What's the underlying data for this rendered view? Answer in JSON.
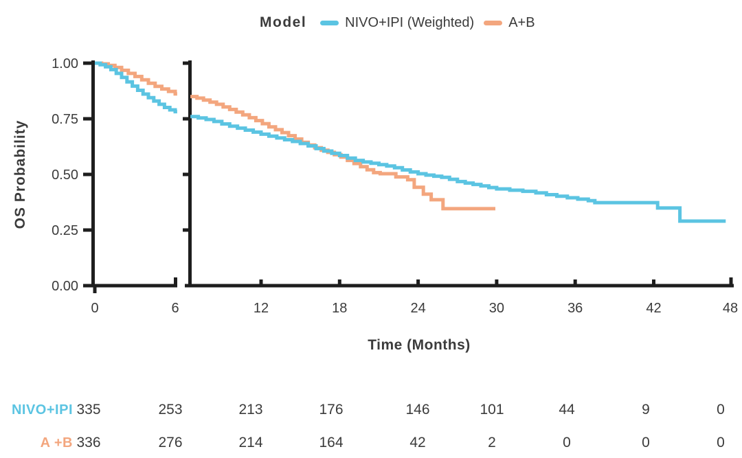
{
  "chart_data": {
    "type": "line",
    "subtype": "kaplan-meier-step-curves",
    "title": "",
    "legend": {
      "title": "Model",
      "entries": [
        {
          "label": "NIVO+IPI (Weighted)",
          "color": "#5BC4E2"
        },
        {
          "label": "A+B",
          "color": "#F3A67E"
        }
      ],
      "position": "top-center"
    },
    "xlabel": "Time (Months)",
    "ylabel": "OS Probability",
    "ylim": [
      0.0,
      1.0
    ],
    "grid": "off",
    "axis_break": {
      "between_months": [
        6,
        7
      ],
      "panel1_range": [
        0,
        6
      ],
      "panel2_range": [
        6.6,
        48
      ]
    },
    "yticks": [
      {
        "v": 1.0,
        "label": "1.00"
      },
      {
        "v": 0.75,
        "label": "0.75"
      },
      {
        "v": 0.5,
        "label": "0.50"
      },
      {
        "v": 0.25,
        "label": "0.25"
      },
      {
        "v": 0.0,
        "label": "0.00"
      }
    ],
    "xticks_panel1": [
      {
        "m": 0,
        "label": "0"
      },
      {
        "m": 6,
        "label": "6"
      }
    ],
    "xticks_panel2": [
      {
        "m": 12,
        "label": "12"
      },
      {
        "m": 18,
        "label": "18"
      },
      {
        "m": 24,
        "label": "24"
      },
      {
        "m": 30,
        "label": "30"
      },
      {
        "m": 36,
        "label": "36"
      },
      {
        "m": 42,
        "label": "42"
      },
      {
        "m": 48,
        "label": "48"
      }
    ],
    "series": [
      {
        "name": "NIVO+IPI (Weighted)",
        "color": "#5BC4E2",
        "panel1_points": [
          [
            0,
            1.0
          ],
          [
            0.4,
            0.993
          ],
          [
            0.8,
            0.984
          ],
          [
            1.2,
            0.971
          ],
          [
            1.6,
            0.954
          ],
          [
            2.0,
            0.936
          ],
          [
            2.4,
            0.916
          ],
          [
            2.8,
            0.897
          ],
          [
            3.2,
            0.878
          ],
          [
            3.6,
            0.861
          ],
          [
            4.0,
            0.845
          ],
          [
            4.4,
            0.83
          ],
          [
            4.8,
            0.815
          ],
          [
            5.2,
            0.801
          ],
          [
            5.6,
            0.79
          ],
          [
            6.0,
            0.782
          ],
          [
            6.15,
            0.782
          ]
        ],
        "panel2_points": [
          [
            6.6,
            0.76
          ],
          [
            7.2,
            0.754
          ],
          [
            7.8,
            0.747
          ],
          [
            8.4,
            0.738
          ],
          [
            9.0,
            0.727
          ],
          [
            9.6,
            0.717
          ],
          [
            10.2,
            0.708
          ],
          [
            10.8,
            0.699
          ],
          [
            11.4,
            0.69
          ],
          [
            12.0,
            0.681
          ],
          [
            12.6,
            0.672
          ],
          [
            13.2,
            0.664
          ],
          [
            13.8,
            0.656
          ],
          [
            14.4,
            0.648
          ],
          [
            15.0,
            0.639
          ],
          [
            15.6,
            0.628
          ],
          [
            16.2,
            0.616
          ],
          [
            16.8,
            0.605
          ],
          [
            17.4,
            0.595
          ],
          [
            18.0,
            0.585
          ],
          [
            18.6,
            0.573
          ],
          [
            19.2,
            0.563
          ],
          [
            19.8,
            0.556
          ],
          [
            20.4,
            0.55
          ],
          [
            21.0,
            0.544
          ],
          [
            21.6,
            0.538
          ],
          [
            22.2,
            0.53
          ],
          [
            22.8,
            0.52
          ],
          [
            23.4,
            0.511
          ],
          [
            24.0,
            0.503
          ],
          [
            24.6,
            0.497
          ],
          [
            25.2,
            0.492
          ],
          [
            25.8,
            0.487
          ],
          [
            26.4,
            0.478
          ],
          [
            27.0,
            0.468
          ],
          [
            27.6,
            0.461
          ],
          [
            28.2,
            0.455
          ],
          [
            28.8,
            0.448
          ],
          [
            29.4,
            0.441
          ],
          [
            30.0,
            0.435
          ],
          [
            31.0,
            0.429
          ],
          [
            32.0,
            0.424
          ],
          [
            33.0,
            0.417
          ],
          [
            33.8,
            0.409
          ],
          [
            34.6,
            0.402
          ],
          [
            35.4,
            0.395
          ],
          [
            36.2,
            0.389
          ],
          [
            37.0,
            0.382
          ],
          [
            37.5,
            0.373
          ],
          [
            42.3,
            0.349
          ],
          [
            44.0,
            0.29
          ],
          [
            47.5,
            0.29
          ]
        ]
      },
      {
        "name": "A+B",
        "color": "#F3A67E",
        "panel1_points": [
          [
            0,
            1.0
          ],
          [
            0.5,
            0.997
          ],
          [
            1.0,
            0.99
          ],
          [
            1.5,
            0.981
          ],
          [
            2.0,
            0.968
          ],
          [
            2.5,
            0.954
          ],
          [
            3.0,
            0.94
          ],
          [
            3.5,
            0.925
          ],
          [
            4.0,
            0.91
          ],
          [
            4.5,
            0.896
          ],
          [
            5.0,
            0.884
          ],
          [
            5.5,
            0.873
          ],
          [
            6.0,
            0.862
          ],
          [
            6.15,
            0.862
          ]
        ],
        "panel2_points": [
          [
            6.6,
            0.85
          ],
          [
            7.1,
            0.843
          ],
          [
            7.6,
            0.834
          ],
          [
            8.1,
            0.825
          ],
          [
            8.6,
            0.815
          ],
          [
            9.1,
            0.803
          ],
          [
            9.6,
            0.792
          ],
          [
            10.1,
            0.78
          ],
          [
            10.6,
            0.768
          ],
          [
            11.1,
            0.755
          ],
          [
            11.6,
            0.742
          ],
          [
            12.1,
            0.728
          ],
          [
            12.6,
            0.714
          ],
          [
            13.1,
            0.701
          ],
          [
            13.6,
            0.688
          ],
          [
            14.1,
            0.674
          ],
          [
            14.6,
            0.659
          ],
          [
            15.1,
            0.644
          ],
          [
            15.6,
            0.632
          ],
          [
            16.1,
            0.62
          ],
          [
            16.6,
            0.609
          ],
          [
            17.1,
            0.599
          ],
          [
            17.6,
            0.589
          ],
          [
            18.1,
            0.578
          ],
          [
            18.6,
            0.563
          ],
          [
            19.1,
            0.549
          ],
          [
            19.6,
            0.535
          ],
          [
            20.1,
            0.521
          ],
          [
            20.6,
            0.508
          ],
          [
            21.1,
            0.503
          ],
          [
            22.3,
            0.489
          ],
          [
            23.2,
            0.476
          ],
          [
            23.7,
            0.442
          ],
          [
            24.4,
            0.411
          ],
          [
            25.0,
            0.386
          ],
          [
            25.9,
            0.346
          ],
          [
            29.9,
            0.346
          ]
        ]
      }
    ],
    "colors": {
      "axis": "#1e1e1e",
      "text": "#3b3b3b"
    }
  },
  "numbers_at_risk": {
    "time_points_months": [
      0,
      6,
      12,
      18,
      24,
      30,
      36,
      42,
      48
    ],
    "rows": [
      {
        "label": "NIVO+IPI",
        "color": "#5BC4E2",
        "values": [
          "335",
          "253",
          "213",
          "176",
          "146",
          "101",
          "44",
          "9",
          "0"
        ]
      },
      {
        "label": "A +B",
        "color": "#F3A67E",
        "values": [
          "336",
          "276",
          "214",
          "164",
          "42",
          "2",
          "0",
          "0",
          "0"
        ]
      }
    ]
  }
}
